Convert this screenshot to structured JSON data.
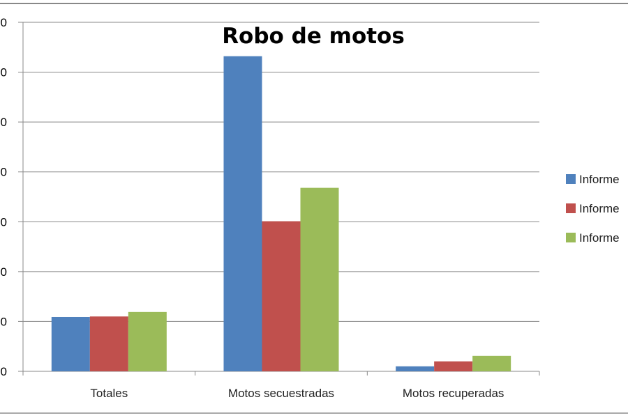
{
  "chart_data": {
    "type": "bar",
    "title": "Robo de motos",
    "categories": [
      "Totales",
      "Motos secuestradas",
      "Motos recuperadas"
    ],
    "series": [
      {
        "name": "Informe",
        "color": "#4F81BD",
        "values": [
          1.09,
          6.32,
          0.1
        ]
      },
      {
        "name": "Informe",
        "color": "#C0504D",
        "values": [
          1.1,
          3.01,
          0.2
        ]
      },
      {
        "name": "Informe",
        "color": "#9BBB59",
        "values": [
          1.19,
          3.68,
          0.31
        ]
      }
    ],
    "ylim": [
      0,
      7
    ],
    "ytick_labels": [
      "0",
      "0",
      "0",
      "0",
      "0",
      "0",
      "0",
      "0"
    ],
    "grid": true,
    "legend_position": "right",
    "note_values_unit": "y values in gridline intervals; tick labels cropped"
  }
}
